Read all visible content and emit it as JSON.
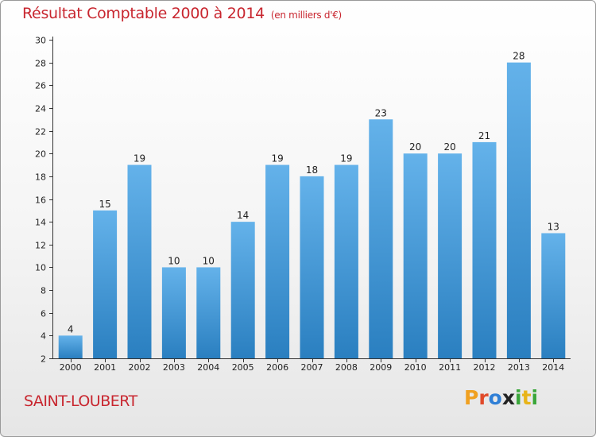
{
  "title": "Résultat Comptable 2000 à 2014",
  "subtitle": "(en milliers d'€)",
  "location": "SAINT-LOUBERT",
  "logo": {
    "letters": [
      "P",
      "r",
      "o",
      "x",
      "i",
      "t",
      "i"
    ],
    "colors": [
      "#f0a020",
      "#e04a2a",
      "#2f7fd6",
      "#222222",
      "#3aa63a",
      "#e8b419",
      "#3aa63a"
    ]
  },
  "colors": {
    "bar_top": "#64b2ea",
    "bar_bottom": "#2a7fc0",
    "title": "#c8262f"
  },
  "chart_data": {
    "type": "bar",
    "title": "Résultat Comptable 2000 à 2014",
    "xlabel": "",
    "ylabel": "",
    "categories": [
      "2000",
      "2001",
      "2002",
      "2003",
      "2004",
      "2005",
      "2006",
      "2007",
      "2008",
      "2009",
      "2010",
      "2011",
      "2012",
      "2013",
      "2014"
    ],
    "values": [
      4,
      15,
      19,
      10,
      10,
      14,
      19,
      18,
      19,
      23,
      20,
      20,
      21,
      28,
      13
    ],
    "ylim": [
      2,
      30
    ],
    "yticks": [
      2,
      4,
      6,
      8,
      10,
      12,
      14,
      16,
      18,
      20,
      22,
      24,
      26,
      28,
      30
    ],
    "grid": false
  }
}
